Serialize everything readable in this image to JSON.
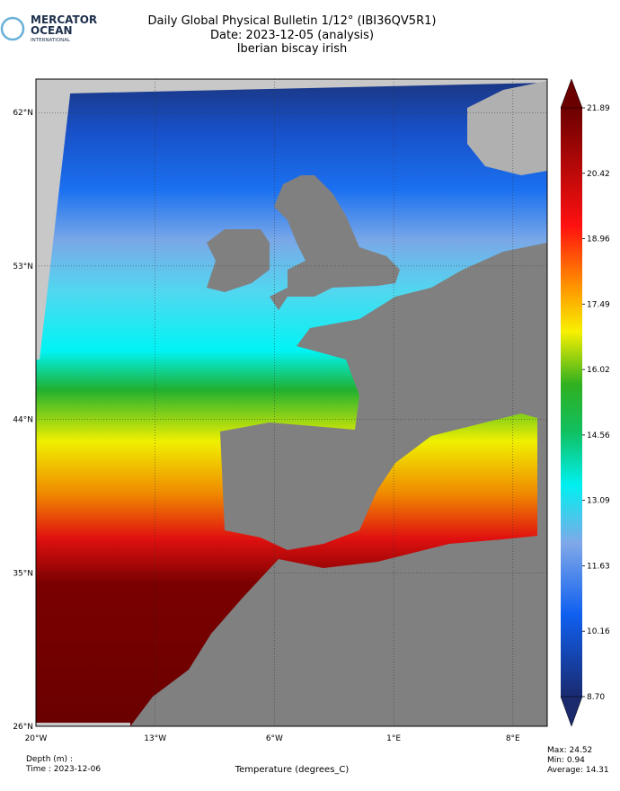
{
  "logo": {
    "line1": "MERCATOR",
    "line2": "OCEAN",
    "line3": "INTERNATIONAL"
  },
  "header": {
    "title": "Daily Global Physical Bulletin 1/12° (IBI36QV5R1)",
    "date": "Date: 2023-12-05 (analysis)",
    "region": "Iberian biscay irish"
  },
  "map": {
    "x_labels": [
      "20°W",
      "13°W",
      "6°W",
      "1°E",
      "8°E"
    ],
    "y_labels": [
      "26°N",
      "35°N",
      "44°N",
      "53°N",
      "62°N"
    ]
  },
  "colorbar": {
    "ticks": [
      "8.70",
      "10.16",
      "11.63",
      "13.09",
      "14.56",
      "16.02",
      "17.49",
      "18.96",
      "20.42",
      "21.89"
    ]
  },
  "footer": {
    "depth": "Depth (m) :",
    "time": "Time : 2023-12-06",
    "variable": "Temperature (degrees_C)",
    "max": "Max: 24.52",
    "min": "Min:  0.94",
    "average": "Average: 14.31"
  }
}
